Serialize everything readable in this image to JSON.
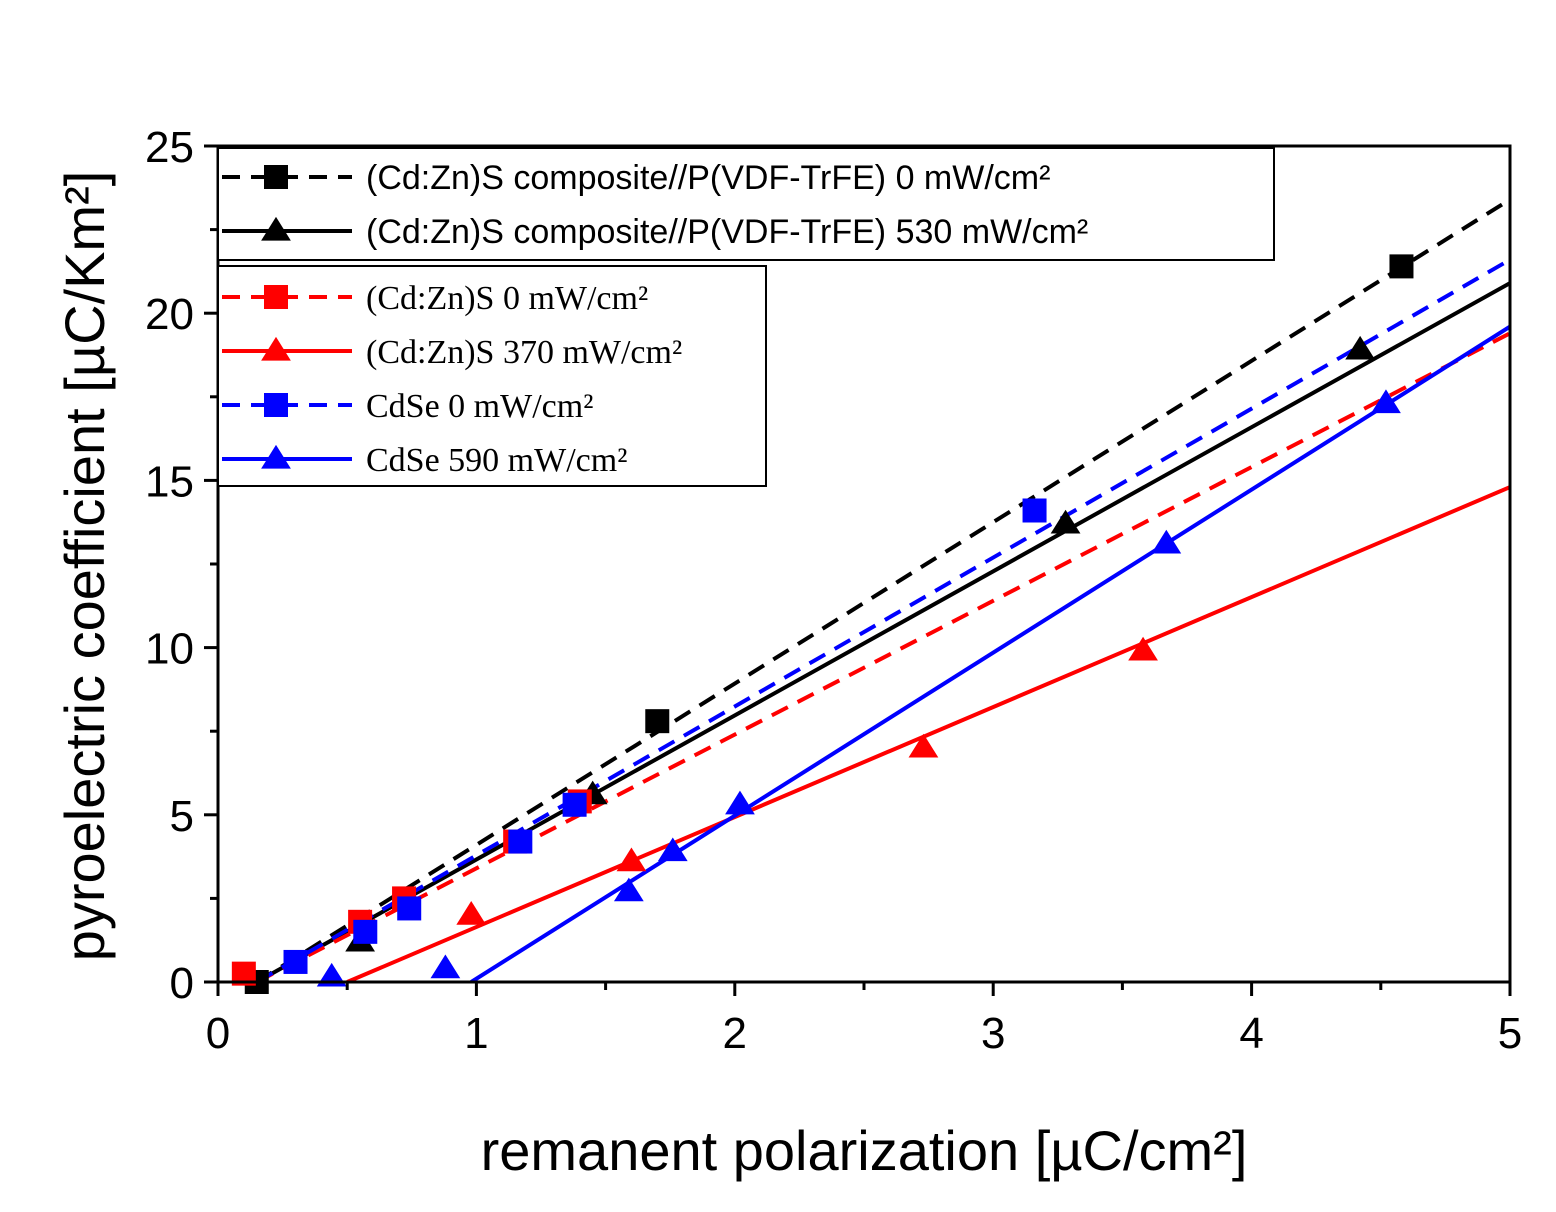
{
  "chart_data": {
    "type": "scatter",
    "xlabel": "remanent polarization [µC/cm²]",
    "ylabel": "pyroelectric coefficient [µC/Km²]",
    "xlim": [
      0,
      5
    ],
    "ylim": [
      0,
      25
    ],
    "xticks": [
      "0",
      "1",
      "2",
      "3",
      "4",
      "5"
    ],
    "yticks": [
      "0",
      "5",
      "10",
      "15",
      "20",
      "25"
    ],
    "grid": false,
    "legend_placement": "top-left",
    "series": [
      {
        "name": "(Cd:Zn)S composite//P(VDF-TrFE) 0 mW/cm²",
        "color": "#000000",
        "marker": "square",
        "line": "dashed",
        "points": [
          [
            0.15,
            0.0
          ],
          [
            1.7,
            7.8
          ],
          [
            4.58,
            21.4
          ]
        ],
        "fit": [
          [
            0.15,
            0.0
          ],
          [
            5.0,
            23.4
          ]
        ]
      },
      {
        "name": "(Cd:Zn)S composite//P(VDF-TrFE) 530 mW/cm²",
        "color": "#000000",
        "marker": "triangle",
        "line": "solid",
        "points": [
          [
            0.55,
            1.2
          ],
          [
            1.45,
            5.6
          ],
          [
            3.28,
            13.7
          ],
          [
            4.42,
            18.9
          ]
        ],
        "fit": [
          [
            0.15,
            0.0
          ],
          [
            5.0,
            20.9
          ]
        ]
      },
      {
        "name": "(Cd:Zn)S 0 mW/cm²",
        "color": "#ff0000",
        "marker": "square",
        "line": "dashed",
        "points": [
          [
            0.1,
            0.25
          ],
          [
            0.55,
            1.8
          ],
          [
            0.72,
            2.5
          ],
          [
            1.15,
            4.2
          ],
          [
            1.4,
            5.4
          ]
        ],
        "fit": [
          [
            0.15,
            0.0
          ],
          [
            5.0,
            19.4
          ]
        ]
      },
      {
        "name": "(Cd:Zn)S 370 mW/cm²",
        "color": "#ff0000",
        "marker": "triangle",
        "line": "solid",
        "points": [
          [
            0.98,
            2.0
          ],
          [
            1.6,
            3.6
          ],
          [
            2.73,
            7.0
          ],
          [
            3.58,
            9.9
          ]
        ],
        "fit": [
          [
            0.5,
            0.0
          ],
          [
            5.0,
            14.8
          ]
        ]
      },
      {
        "name": "CdSe 0 mW/cm²",
        "color": "#0000ff",
        "marker": "square",
        "line": "dashed",
        "points": [
          [
            0.3,
            0.6
          ],
          [
            0.57,
            1.5
          ],
          [
            0.74,
            2.2
          ],
          [
            1.17,
            4.2
          ],
          [
            1.38,
            5.3
          ],
          [
            3.16,
            14.1
          ]
        ],
        "fit": [
          [
            0.15,
            0.0
          ],
          [
            5.0,
            21.6
          ]
        ]
      },
      {
        "name": "CdSe 590 mW/cm²",
        "color": "#0000ff",
        "marker": "triangle",
        "line": "solid",
        "points": [
          [
            0.44,
            0.15
          ],
          [
            0.88,
            0.4
          ],
          [
            1.59,
            2.7
          ],
          [
            1.76,
            3.9
          ],
          [
            2.02,
            5.3
          ],
          [
            3.67,
            13.1
          ],
          [
            4.52,
            17.3
          ]
        ],
        "fit": [
          [
            0.98,
            0.0
          ],
          [
            5.0,
            19.6
          ]
        ]
      }
    ],
    "legend_groups": [
      {
        "style": "sans",
        "entries": [
          0,
          1
        ]
      },
      {
        "style": "serif",
        "entries": [
          2,
          3,
          4,
          5
        ]
      }
    ]
  }
}
